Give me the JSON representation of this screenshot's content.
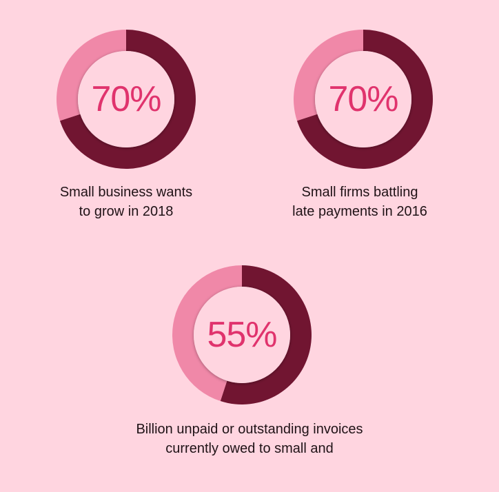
{
  "colors": {
    "background": "#ffd5e0",
    "filled": "#711531",
    "remainder": "#f088a8",
    "inner": "#ffd5e0",
    "value_text": "#e0336d",
    "caption_text": "#1f1216"
  },
  "chart_data": [
    {
      "type": "pie",
      "variant": "donut",
      "value": 70,
      "value_label": "70%",
      "caption": [
        "Small business wants",
        "to grow in 2018"
      ]
    },
    {
      "type": "pie",
      "variant": "donut",
      "value": 70,
      "value_label": "70%",
      "caption": [
        "Small firms battling",
        "late payments in 2016"
      ]
    },
    {
      "type": "pie",
      "variant": "donut",
      "value": 55,
      "value_label": "55%",
      "caption": [
        "Billion unpaid or outstanding invoices",
        "currently owed to small and"
      ]
    }
  ]
}
